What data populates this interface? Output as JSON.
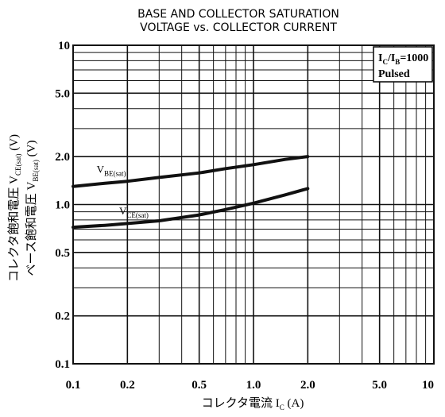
{
  "chart_data": {
    "type": "line",
    "title_lines": [
      "BASE AND COLLECTOR SATURATION",
      "VOLTAGE vs. COLLECTOR CURRENT"
    ],
    "x_scale": "log",
    "y_scale": "log",
    "xlim": [
      0.1,
      10
    ],
    "ylim": [
      0.1,
      10
    ],
    "x_ticks": [
      {
        "value": 0.1,
        "label": "0.1"
      },
      {
        "value": 0.2,
        "label": "0.2"
      },
      {
        "value": 0.5,
        "label": "0.5"
      },
      {
        "value": 1.0,
        "label": "1.0"
      },
      {
        "value": 2.0,
        "label": "2.0"
      },
      {
        "value": 5.0,
        "label": "5.0"
      },
      {
        "value": 10,
        "label": "10"
      }
    ],
    "y_ticks": [
      {
        "value": 0.1,
        "label": "0.1"
      },
      {
        "value": 0.2,
        "label": "0.2"
      },
      {
        "value": 0.5,
        "label": "0.5"
      },
      {
        "value": 1.0,
        "label": "1.0"
      },
      {
        "value": 2.0,
        "label": "2.0"
      },
      {
        "value": 5.0,
        "label": "5.0"
      },
      {
        "value": 10,
        "label": "10"
      }
    ],
    "xlabel": {
      "main": "コレクタ電流 I",
      "sub": "C",
      "unit": " (A)"
    },
    "ylabel_lines": [
      {
        "main": "コレクタ飽和電圧 V",
        "sub": "CE(sat)",
        "unit": " (V)"
      },
      {
        "main": "ベース飽和電圧 V",
        "sub": "BE(sat)",
        "unit": " (V)"
      }
    ],
    "annotation": {
      "line1": {
        "a": "I",
        "a_sub": "C",
        "b": "/I",
        "b_sub": "B",
        "c": "=1000"
      },
      "line2": "Pulsed"
    },
    "grid": true,
    "series": [
      {
        "name": {
          "main": "V",
          "sub": "BE(sat)"
        },
        "x": [
          0.1,
          0.15,
          0.2,
          0.3,
          0.5,
          0.7,
          1.0,
          1.5,
          2.0
        ],
        "y": [
          1.3,
          1.36,
          1.4,
          1.48,
          1.58,
          1.68,
          1.78,
          1.92,
          2.0
        ]
      },
      {
        "name": {
          "main": "V",
          "sub": "CE(sat)"
        },
        "x": [
          0.1,
          0.15,
          0.2,
          0.3,
          0.5,
          0.7,
          1.0,
          1.5,
          2.0
        ],
        "y": [
          0.72,
          0.74,
          0.76,
          0.79,
          0.86,
          0.93,
          1.02,
          1.15,
          1.26
        ]
      }
    ]
  }
}
